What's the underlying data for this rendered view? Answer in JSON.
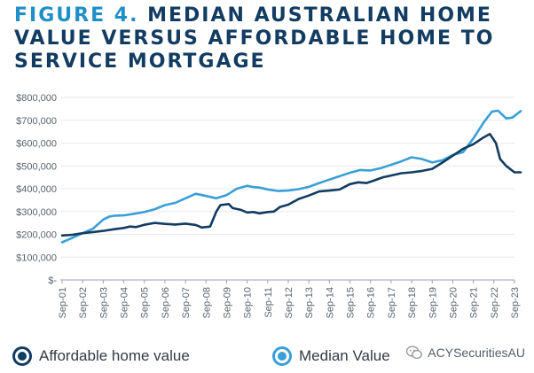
{
  "title": {
    "figure": "FIGURE 4.",
    "text": "MEDIAN AUSTRALIAN HOME VALUE VERSUS AFFORDABLE HOME TO SERVICE MORTGAGE"
  },
  "colors": {
    "title_dark": "#123c61",
    "title_accent": "#1f8fc8",
    "affordable": "#123c61",
    "median": "#3a9fd6"
  },
  "legend": [
    {
      "label": "Affordable home value",
      "color": "#123c61",
      "icon": "ring-dot-icon"
    },
    {
      "label": "Median Value",
      "color": "#3a9fd6",
      "icon": "ring-dot-icon"
    }
  ],
  "watermark": {
    "text": "ACYSecuritiesAU",
    "icon": "wechat-icon"
  },
  "chart_data": {
    "type": "line",
    "title": "MEDIAN AUSTRALIAN HOME VALUE VERSUS AFFORDABLE HOME TO SERVICE MORTGAGE",
    "xlabel": "",
    "ylabel": "",
    "ylim": [
      0,
      800000
    ],
    "yticks": [
      0,
      100000,
      200000,
      300000,
      400000,
      500000,
      600000,
      700000,
      800000
    ],
    "ytick_labels": [
      "$-",
      "$100,000",
      "$200,000",
      "$300,000",
      "$400,000",
      "$500,000",
      "$600,000",
      "$700,000",
      "$800,000"
    ],
    "xtick_labels": [
      "Sep-01",
      "Sep-02",
      "Sep-03",
      "Sep-04",
      "Sep-05",
      "Sep-06",
      "Sep-07",
      "Sep-08",
      "Sep-09",
      "Sep-10",
      "Sep-11",
      "Sep-12",
      "Sep-13",
      "Sep-14",
      "Sep-15",
      "Sep-16",
      "Sep-17",
      "Sep-18",
      "Sep-19",
      "Sep-20",
      "Sep-21",
      "Sep-22",
      "Sep-23"
    ],
    "grid": true,
    "legend_position": "bottom",
    "series": [
      {
        "name": "Affordable home value",
        "color": "#123c61",
        "points": [
          [
            2001.0,
            195000
          ],
          [
            2001.5,
            198000
          ],
          [
            2002.0,
            205000
          ],
          [
            2002.5,
            210000
          ],
          [
            2003.0,
            215000
          ],
          [
            2003.5,
            222000
          ],
          [
            2004.0,
            228000
          ],
          [
            2004.3,
            234000
          ],
          [
            2004.6,
            232000
          ],
          [
            2005.0,
            242000
          ],
          [
            2005.5,
            250000
          ],
          [
            2006.0,
            246000
          ],
          [
            2006.5,
            243000
          ],
          [
            2007.0,
            247000
          ],
          [
            2007.5,
            241000
          ],
          [
            2007.8,
            230000
          ],
          [
            2008.2,
            234000
          ],
          [
            2008.5,
            300000
          ],
          [
            2008.7,
            328000
          ],
          [
            2009.1,
            333000
          ],
          [
            2009.3,
            315000
          ],
          [
            2009.7,
            307000
          ],
          [
            2010.0,
            296000
          ],
          [
            2010.3,
            298000
          ],
          [
            2010.6,
            292000
          ],
          [
            2011.0,
            298000
          ],
          [
            2011.3,
            300000
          ],
          [
            2011.6,
            320000
          ],
          [
            2012.0,
            330000
          ],
          [
            2012.5,
            355000
          ],
          [
            2013.0,
            370000
          ],
          [
            2013.5,
            388000
          ],
          [
            2014.0,
            392000
          ],
          [
            2014.5,
            397000
          ],
          [
            2015.0,
            420000
          ],
          [
            2015.4,
            428000
          ],
          [
            2015.8,
            425000
          ],
          [
            2016.2,
            437000
          ],
          [
            2016.6,
            450000
          ],
          [
            2017.0,
            458000
          ],
          [
            2017.5,
            468000
          ],
          [
            2018.0,
            472000
          ],
          [
            2018.5,
            478000
          ],
          [
            2019.0,
            487000
          ],
          [
            2019.5,
            515000
          ],
          [
            2020.0,
            545000
          ],
          [
            2020.5,
            575000
          ],
          [
            2021.0,
            595000
          ],
          [
            2021.5,
            625000
          ],
          [
            2021.8,
            640000
          ],
          [
            2022.1,
            600000
          ],
          [
            2022.3,
            530000
          ],
          [
            2022.6,
            500000
          ],
          [
            2023.0,
            472000
          ],
          [
            2023.3,
            472000
          ]
        ]
      },
      {
        "name": "Median Value",
        "color": "#3a9fd6",
        "points": [
          [
            2001.0,
            165000
          ],
          [
            2001.5,
            185000
          ],
          [
            2002.0,
            205000
          ],
          [
            2002.5,
            225000
          ],
          [
            2003.0,
            265000
          ],
          [
            2003.3,
            278000
          ],
          [
            2003.6,
            282000
          ],
          [
            2004.0,
            283000
          ],
          [
            2004.5,
            290000
          ],
          [
            2005.0,
            298000
          ],
          [
            2005.5,
            310000
          ],
          [
            2006.0,
            328000
          ],
          [
            2006.5,
            338000
          ],
          [
            2007.0,
            358000
          ],
          [
            2007.5,
            378000
          ],
          [
            2008.0,
            368000
          ],
          [
            2008.5,
            358000
          ],
          [
            2009.0,
            372000
          ],
          [
            2009.5,
            400000
          ],
          [
            2010.0,
            413000
          ],
          [
            2010.3,
            407000
          ],
          [
            2010.6,
            405000
          ],
          [
            2011.0,
            397000
          ],
          [
            2011.5,
            390000
          ],
          [
            2012.0,
            392000
          ],
          [
            2012.5,
            398000
          ],
          [
            2013.0,
            408000
          ],
          [
            2013.5,
            425000
          ],
          [
            2014.0,
            440000
          ],
          [
            2014.5,
            455000
          ],
          [
            2015.0,
            470000
          ],
          [
            2015.5,
            482000
          ],
          [
            2016.0,
            480000
          ],
          [
            2016.5,
            490000
          ],
          [
            2017.0,
            505000
          ],
          [
            2017.5,
            520000
          ],
          [
            2018.0,
            538000
          ],
          [
            2018.5,
            530000
          ],
          [
            2019.0,
            515000
          ],
          [
            2019.5,
            525000
          ],
          [
            2020.0,
            548000
          ],
          [
            2020.5,
            560000
          ],
          [
            2021.0,
            620000
          ],
          [
            2021.5,
            690000
          ],
          [
            2021.9,
            738000
          ],
          [
            2022.2,
            742000
          ],
          [
            2022.6,
            708000
          ],
          [
            2022.9,
            712000
          ],
          [
            2023.3,
            740000
          ]
        ]
      }
    ]
  }
}
